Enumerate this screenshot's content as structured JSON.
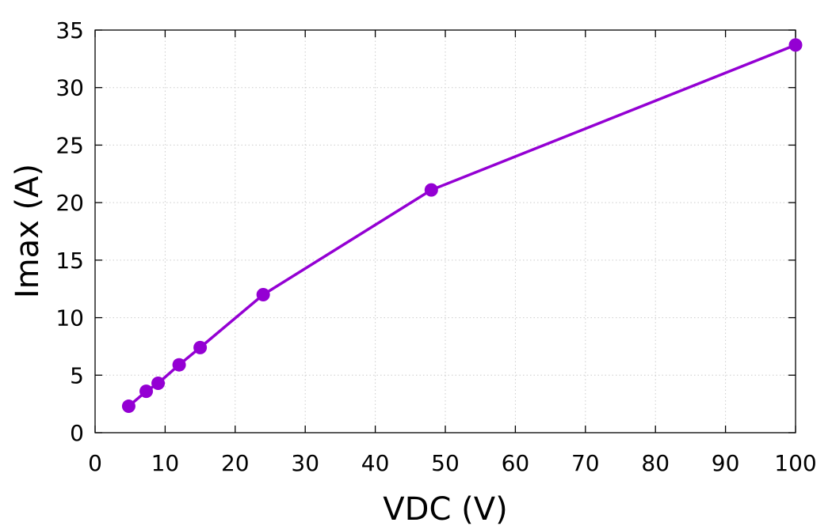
{
  "chart_data": {
    "type": "line",
    "title": "",
    "xlabel": "VDC (V)",
    "ylabel": "Imax (A)",
    "xlim": [
      0,
      100
    ],
    "ylim": [
      0,
      35
    ],
    "xticks": [
      0,
      10,
      20,
      30,
      40,
      50,
      60,
      70,
      80,
      90,
      100
    ],
    "yticks": [
      0,
      5,
      10,
      15,
      20,
      25,
      30,
      35
    ],
    "grid": true,
    "legend": "none",
    "markers": "filled-circle",
    "color": "#9400d3",
    "series": [
      {
        "x": [
          4.8,
          7.3,
          9.0,
          12.0,
          15.0,
          24.0,
          48.0,
          100.0
        ],
        "y": [
          2.3,
          3.6,
          4.3,
          5.9,
          7.4,
          12.0,
          21.1,
          33.7
        ]
      }
    ]
  }
}
